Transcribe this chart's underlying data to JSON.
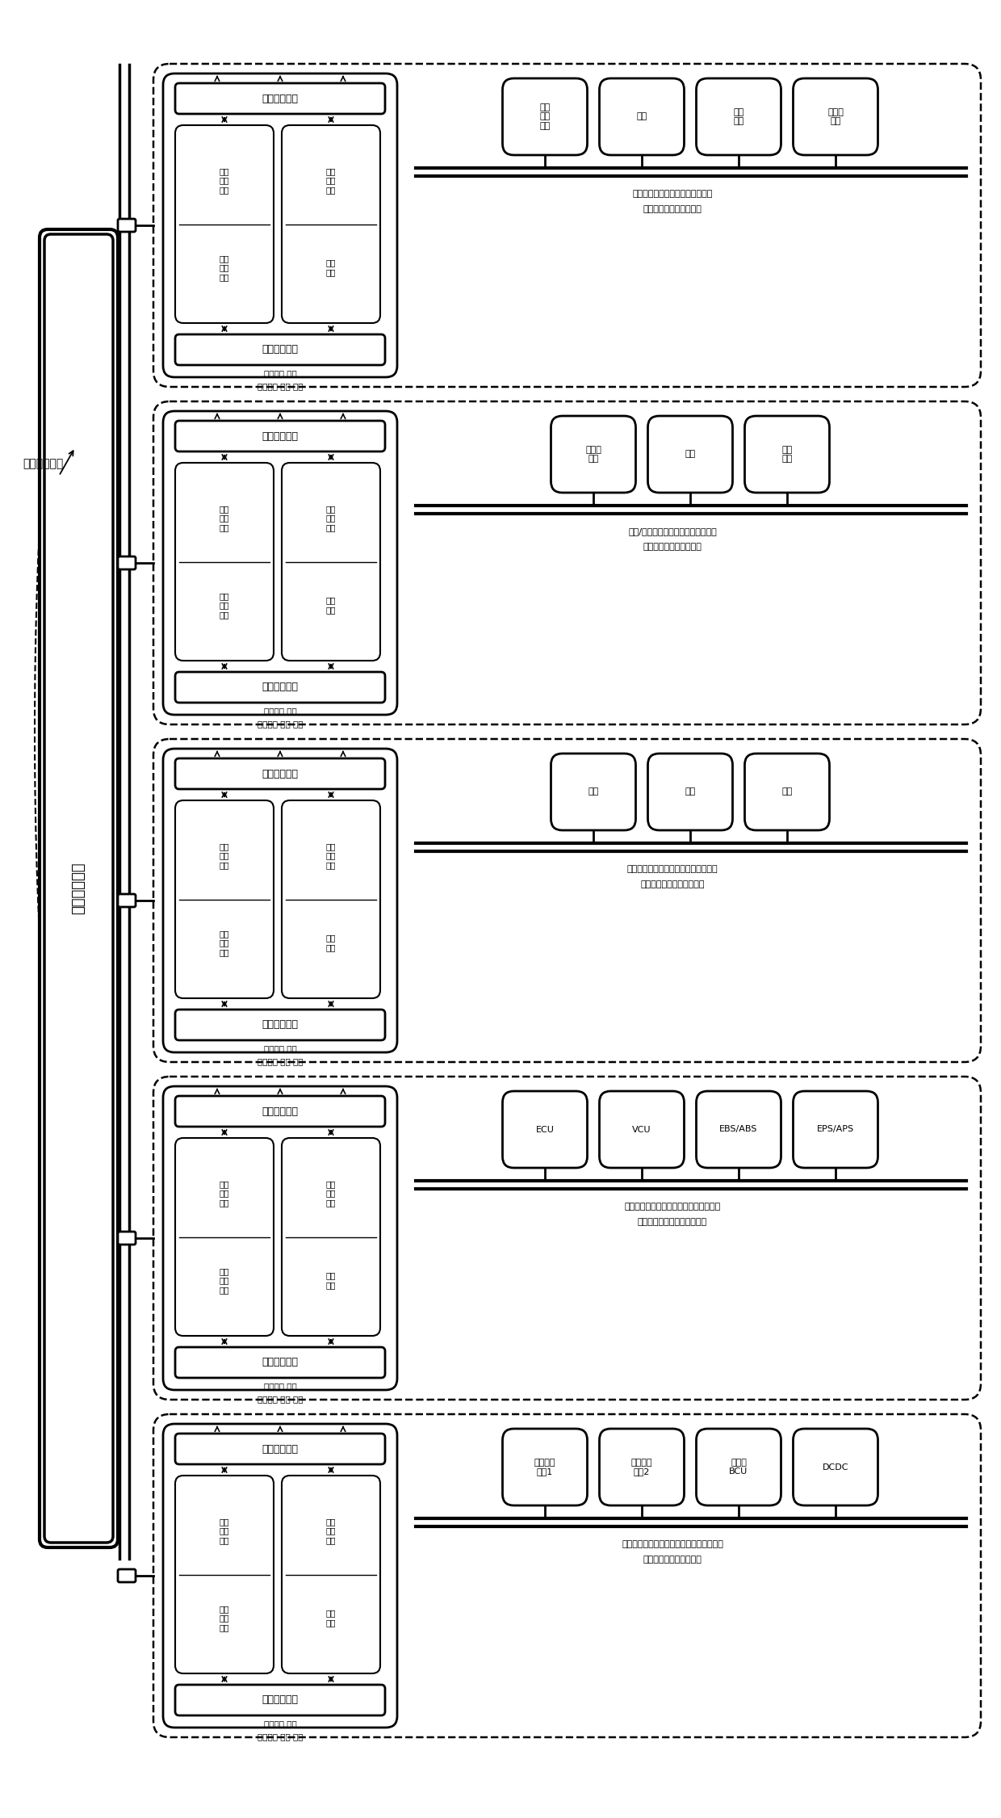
{
  "switch_label": "车载交换装置",
  "backbone_label": "车载主干网络",
  "domains": [
    {
      "desc_line1": "信息采集、控制、计算、网络系统",
      "desc_line2": "管理重复子网络区域系统",
      "top_box_label": "采集感知系统",
      "bot_box_label": "能效管理系统",
      "bottom_labels": [
        "数据处理 指令",
        "计算控制 调度 命令"
      ],
      "devices": [
        "导航\n采集\n系统",
        "音响",
        "娱乐\n设备",
        "互联网\n设备"
      ],
      "proc1": [
        "数据\n处理\n模块",
        "指令\n调度\n模块"
      ],
      "proc2": [
        "感知\n融合\n模块",
        "闸控\n模块"
      ]
    },
    {
      "desc_line1": "感知/规划控制、计算、域间区域系统",
      "desc_line2": "管理重复子网络区域系统",
      "top_box_label": "采集感知系统",
      "bot_box_label": "能效管理系统",
      "bottom_labels": [
        "数据处理 指令",
        "计算控制 调度 命令"
      ],
      "devices": [
        "摄像头\n系统",
        "雷达",
        "传感\n设备"
      ],
      "proc1": [
        "数据\n处理\n模块",
        "指令\n调度\n模块"
      ],
      "proc2": [
        "感知\n融合\n模块",
        "闸控\n模块"
      ]
    },
    {
      "desc_line1": "车身控制设计计算、域间区域网络系统",
      "desc_line2": "计算管理重子网络区域系统",
      "top_box_label": "采集感知系统",
      "bot_box_label": "能效管理系统",
      "bottom_labels": [
        "数据处理 指令",
        "计算控制 调度 命令"
      ],
      "devices": [
        "车门",
        "车窗",
        "座椅"
      ],
      "proc1": [
        "数据\n处理\n模块",
        "指令\n调度\n模块"
      ],
      "proc2": [
        "感知\n融合\n模块",
        "闸控\n模块"
      ]
    },
    {
      "desc_line1": "动力驱动控制、计算、域间区域网络系统",
      "desc_line2": "动力驱动控制子网络区域系统",
      "top_box_label": "采集感知系统",
      "bot_box_label": "能效管理系统",
      "bottom_labels": [
        "数据处理 指令",
        "计算控制 调度 命令"
      ],
      "devices": [
        "ECU",
        "VCU",
        "EBS/ABS",
        "EPS/APS"
      ],
      "proc1": [
        "数据\n处理\n模块",
        "指令\n调度\n模块"
      ],
      "proc2": [
        "感知\n融合\n模块",
        "闸控\n模块"
      ]
    },
    {
      "desc_line1": "能量采集、控制、计算、域间区域网络系统",
      "desc_line2": "能量采集子网络区域系统",
      "top_box_label": "采集感知系统",
      "bot_box_label": "能效管理系统",
      "bottom_labels": [
        "数据处理 指令",
        "计算控制 调度 命令"
      ],
      "devices": [
        "电源采集\n模块1",
        "电源采集\n模块2",
        "充电机\nBCU",
        "DCDC"
      ],
      "proc1": [
        "数据\n处理\n模块",
        "指令\n调度\n模块"
      ],
      "proc2": [
        "感知\n融合\n模块",
        "闸控\n模块"
      ]
    }
  ]
}
